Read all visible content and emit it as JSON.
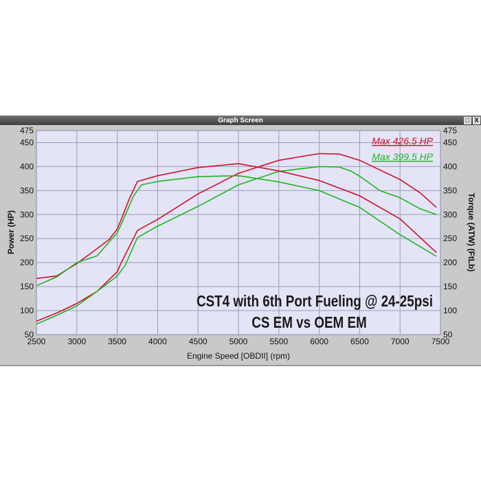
{
  "window": {
    "title": "Graph Screen",
    "restore_icon": "restore-icon",
    "close_label": "X"
  },
  "chart_data": {
    "type": "line",
    "title": "CST4 with 6th Port Fueling @ 24-25psi",
    "subtitle": "CS EM vs OEM EM",
    "xlabel": "Engine Speed [OBDII] (rpm)",
    "ylabel": "Power (HP)",
    "y2label": "Torque (ATW) (FtLb)",
    "xlim": [
      2500,
      7500
    ],
    "ylim": [
      50,
      475
    ],
    "y2lim": [
      50,
      475
    ],
    "xticks": [
      2500,
      3000,
      3500,
      4000,
      4500,
      5000,
      5500,
      6000,
      6500,
      7000,
      7500
    ],
    "yticks": [
      50,
      100,
      150,
      200,
      250,
      300,
      350,
      400,
      450,
      475
    ],
    "grid": true,
    "annotations": [
      {
        "text": "Max 426.5 HP",
        "color": "#d0102a"
      },
      {
        "text": "Max 399.5 HP",
        "color": "#1fb41f"
      }
    ],
    "series": [
      {
        "color": "#d0102a",
        "axis": "power",
        "x": [
          2500,
          2750,
          3000,
          3250,
          3500,
          3550,
          3750,
          4000,
          4500,
          5000,
          5500,
          6000,
          6250,
          6500,
          7000,
          7250,
          7450
        ],
        "y": [
          78,
          95,
          115,
          140,
          181,
          200,
          267,
          290,
          343,
          386,
          413,
          427,
          426,
          413,
          373,
          345,
          315
        ]
      },
      {
        "color": "#1fb41f",
        "axis": "power",
        "x": [
          2500,
          2750,
          3000,
          3250,
          3500,
          3600,
          3750,
          4000,
          4500,
          5000,
          5500,
          6000,
          6250,
          6400,
          6500,
          6750,
          7000,
          7250,
          7450
        ],
        "y": [
          72,
          90,
          110,
          140,
          172,
          195,
          252,
          276,
          317,
          362,
          390,
          400,
          399,
          390,
          380,
          350,
          335,
          312,
          300
        ]
      },
      {
        "color": "#d0102a",
        "axis": "torque",
        "x": [
          2500,
          2750,
          3000,
          3250,
          3400,
          3500,
          3550,
          3650,
          3750,
          4000,
          4500,
          5000,
          5500,
          6000,
          6500,
          7000,
          7450
        ],
        "y": [
          167,
          172,
          198,
          229,
          248,
          270,
          290,
          333,
          369,
          381,
          398,
          406,
          391,
          371,
          339,
          291,
          221
        ]
      },
      {
        "color": "#1fb41f",
        "axis": "torque",
        "x": [
          2500,
          2750,
          3000,
          3250,
          3500,
          3550,
          3700,
          3800,
          4000,
          4500,
          5000,
          5500,
          6000,
          6500,
          7000,
          7450
        ],
        "y": [
          152,
          170,
          200,
          214,
          262,
          280,
          338,
          362,
          369,
          379,
          381,
          368,
          350,
          315,
          258,
          213
        ]
      }
    ]
  }
}
